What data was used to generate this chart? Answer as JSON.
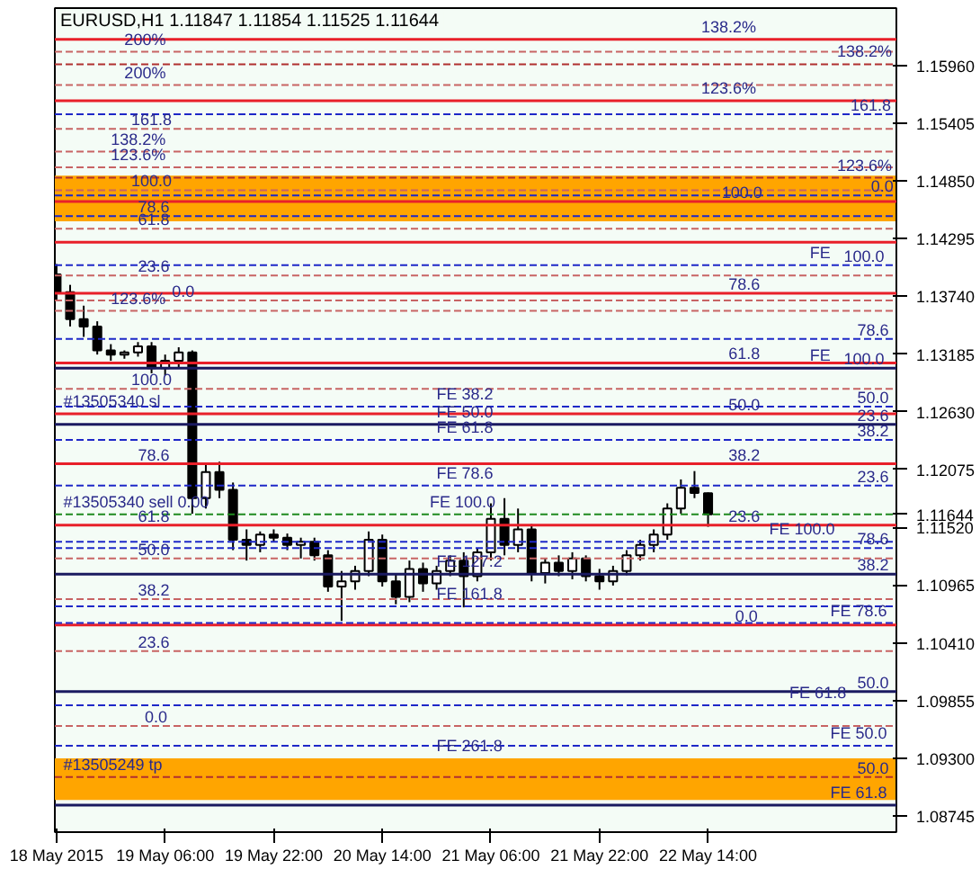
{
  "chart_data": {
    "type": "candlestick",
    "title": "EURUSD,H1  1.11847 1.11854 1.11525 1.11644",
    "x": [
      "2015-05-18T14:00",
      "2015-05-18T16:00",
      "2015-05-18T18:00",
      "2015-05-18T20:00",
      "2015-05-18T22:00",
      "2015-05-19T00:00",
      "2015-05-19T02:00",
      "2015-05-19T04:00",
      "2015-05-19T06:00",
      "2015-05-19T08:00",
      "2015-05-19T10:00",
      "2015-05-19T12:00",
      "2015-05-19T14:00",
      "2015-05-19T16:00",
      "2015-05-19T18:00",
      "2015-05-19T20:00",
      "2015-05-19T22:00",
      "2015-05-20T00:00",
      "2015-05-20T02:00",
      "2015-05-20T04:00",
      "2015-05-20T06:00",
      "2015-05-20T08:00",
      "2015-05-20T10:00",
      "2015-05-20T12:00",
      "2015-05-20T14:00",
      "2015-05-20T16:00",
      "2015-05-20T18:00",
      "2015-05-20T20:00",
      "2015-05-20T22:00",
      "2015-05-21T00:00",
      "2015-05-21T02:00",
      "2015-05-21T04:00",
      "2015-05-21T06:00",
      "2015-05-21T08:00",
      "2015-05-21T10:00",
      "2015-05-21T12:00",
      "2015-05-21T14:00",
      "2015-05-21T16:00",
      "2015-05-21T18:00",
      "2015-05-21T20:00",
      "2015-05-21T22:00",
      "2015-05-22T00:00",
      "2015-05-22T02:00",
      "2015-05-22T04:00",
      "2015-05-22T06:00",
      "2015-05-22T08:00",
      "2015-05-22T10:00",
      "2015-05-22T12:00",
      "2015-05-22T14:00"
    ],
    "ohlc": [
      [
        1.1395,
        1.1405,
        1.137,
        1.1378
      ],
      [
        1.1378,
        1.1385,
        1.1345,
        1.1352
      ],
      [
        1.1352,
        1.1365,
        1.1335,
        1.1345
      ],
      [
        1.1345,
        1.135,
        1.1318,
        1.1322
      ],
      [
        1.1322,
        1.1328,
        1.1312,
        1.1318
      ],
      [
        1.1318,
        1.1322,
        1.1314,
        1.132
      ],
      [
        1.132,
        1.133,
        1.1316,
        1.1326
      ],
      [
        1.1326,
        1.133,
        1.13,
        1.1305
      ],
      [
        1.1305,
        1.1318,
        1.1298,
        1.1312
      ],
      [
        1.1312,
        1.1325,
        1.1305,
        1.132
      ],
      [
        1.132,
        1.1322,
        1.1165,
        1.118
      ],
      [
        1.118,
        1.1212,
        1.117,
        1.1205
      ],
      [
        1.1205,
        1.1215,
        1.118,
        1.1188
      ],
      [
        1.1188,
        1.1195,
        1.113,
        1.114
      ],
      [
        1.114,
        1.115,
        1.112,
        1.1135
      ],
      [
        1.1135,
        1.1148,
        1.1128,
        1.1145
      ],
      [
        1.1145,
        1.115,
        1.1138,
        1.1142
      ],
      [
        1.1142,
        1.1146,
        1.113,
        1.1135
      ],
      [
        1.1135,
        1.1142,
        1.1122,
        1.1138
      ],
      [
        1.1138,
        1.1142,
        1.112,
        1.1125
      ],
      [
        1.1125,
        1.113,
        1.109,
        1.1095
      ],
      [
        1.1095,
        1.111,
        1.1062,
        1.11
      ],
      [
        1.11,
        1.1115,
        1.1092,
        1.111
      ],
      [
        1.111,
        1.1148,
        1.1105,
        1.114
      ],
      [
        1.114,
        1.1145,
        1.1095,
        1.11
      ],
      [
        1.11,
        1.1108,
        1.1078,
        1.1085
      ],
      [
        1.1085,
        1.112,
        1.108,
        1.1112
      ],
      [
        1.1112,
        1.1118,
        1.109,
        1.1098
      ],
      [
        1.1098,
        1.1115,
        1.1092,
        1.111
      ],
      [
        1.111,
        1.1125,
        1.1105,
        1.112
      ],
      [
        1.112,
        1.1128,
        1.1075,
        1.1105
      ],
      [
        1.1105,
        1.1132,
        1.11,
        1.1128
      ],
      [
        1.1128,
        1.1175,
        1.112,
        1.116
      ],
      [
        1.116,
        1.118,
        1.1125,
        1.1135
      ],
      [
        1.1135,
        1.117,
        1.1128,
        1.115
      ],
      [
        1.115,
        1.1155,
        1.11,
        1.1108
      ],
      [
        1.1108,
        1.1122,
        1.1098,
        1.1118
      ],
      [
        1.1118,
        1.1125,
        1.1105,
        1.111
      ],
      [
        1.111,
        1.1128,
        1.1102,
        1.1122
      ],
      [
        1.1122,
        1.1125,
        1.11,
        1.1105
      ],
      [
        1.1105,
        1.1112,
        1.1092,
        1.11
      ],
      [
        1.11,
        1.1115,
        1.1096,
        1.111
      ],
      [
        1.111,
        1.113,
        1.1106,
        1.1125
      ],
      [
        1.1125,
        1.114,
        1.112,
        1.1135
      ],
      [
        1.1135,
        1.115,
        1.1128,
        1.1145
      ],
      [
        1.1145,
        1.1175,
        1.114,
        1.117
      ],
      [
        1.117,
        1.1198,
        1.1165,
        1.119
      ],
      [
        1.119,
        1.1206,
        1.118,
        1.1185
      ],
      [
        1.11847,
        1.11854,
        1.11525,
        1.11644
      ]
    ],
    "xlim": [
      "2015-05-18T13:45",
      "2015-05-23T17:45"
    ],
    "xticks": [
      {
        "value": "2015-05-18T14:00",
        "label": "18 May 2015"
      },
      {
        "value": "2015-05-19T06:00",
        "label": "19 May 06:00"
      },
      {
        "value": "2015-05-19T22:00",
        "label": "19 May 22:00"
      },
      {
        "value": "2015-05-20T14:00",
        "label": "20 May 14:00"
      },
      {
        "value": "2015-05-21T06:00",
        "label": "21 May 06:00"
      },
      {
        "value": "2015-05-21T22:00",
        "label": "21 May 22:00"
      },
      {
        "value": "2015-05-22T14:00",
        "label": "22 May 14:00"
      }
    ],
    "ylim": [
      1.0859,
      1.1651
    ],
    "yticks": [
      {
        "value": 1.1596,
        "label": "1.15960"
      },
      {
        "value": 1.15405,
        "label": "1.15405"
      },
      {
        "value": 1.1485,
        "label": "1.14850"
      },
      {
        "value": 1.14295,
        "label": "1.14295"
      },
      {
        "value": 1.1374,
        "label": "1.13740"
      },
      {
        "value": 1.13185,
        "label": "1.13185"
      },
      {
        "value": 1.1263,
        "label": "1.12630"
      },
      {
        "value": 1.12075,
        "label": "1.12075"
      },
      {
        "value": 1.1152,
        "label": "1.11520"
      },
      {
        "value": 1.10965,
        "label": "1.10965"
      },
      {
        "value": 1.1041,
        "label": "1.10410"
      },
      {
        "value": 1.09855,
        "label": "1.09855"
      },
      {
        "value": 1.093,
        "label": "1.09300"
      },
      {
        "value": 1.08745,
        "label": "1.08745"
      },
      {
        "value": 1.11644,
        "label": "1.11644"
      }
    ],
    "bands": [
      {
        "axis": "y",
        "from": 1.1446,
        "to": 1.149,
        "color": "#ffa500"
      },
      {
        "axis": "y",
        "from": 1.089,
        "to": 1.093,
        "color": "#ffa500"
      }
    ],
    "ref_lines": [
      {
        "axis": "y",
        "value": 1.1621,
        "color": "#e8202a",
        "line_style": "solid"
      },
      {
        "axis": "y",
        "value": 1.1562,
        "color": "#e8202a",
        "line_style": "solid"
      },
      {
        "axis": "y",
        "value": 1.1465,
        "color": "#e8202a",
        "line_style": "solid"
      },
      {
        "axis": "y",
        "value": 1.1426,
        "color": "#e8202a",
        "line_style": "solid"
      },
      {
        "axis": "y",
        "value": 1.1377,
        "color": "#e8202a",
        "line_style": "solid"
      },
      {
        "axis": "y",
        "value": 1.131,
        "color": "#e8202a",
        "line_style": "solid"
      },
      {
        "axis": "y",
        "value": 1.1261,
        "color": "#e8202a",
        "line_style": "solid"
      },
      {
        "axis": "y",
        "value": 1.1213,
        "color": "#e8202a",
        "line_style": "solid"
      },
      {
        "axis": "y",
        "value": 1.1154,
        "color": "#e8202a",
        "line_style": "solid"
      },
      {
        "axis": "y",
        "value": 1.1058,
        "color": "#e8202a",
        "line_style": "solid"
      },
      {
        "axis": "y",
        "value": 1.1597,
        "color": "#b03030",
        "line_style": "dashed"
      },
      {
        "axis": "y",
        "value": 1.1488,
        "color": "#b03030",
        "line_style": "dashed"
      },
      {
        "axis": "y",
        "value": 1.0912,
        "color": "#b03030",
        "line_style": "dashed"
      },
      {
        "axis": "y",
        "value": 1.1609,
        "color": "#c86464",
        "line_style": "dashed"
      },
      {
        "axis": "y",
        "value": 1.1577,
        "color": "#c86464",
        "line_style": "dashed"
      },
      {
        "axis": "y",
        "value": 1.1535,
        "color": "#c86464",
        "line_style": "dashed"
      },
      {
        "axis": "y",
        "value": 1.1513,
        "color": "#c86464",
        "line_style": "dashed"
      },
      {
        "axis": "y",
        "value": 1.1498,
        "color": "#c86464",
        "line_style": "dashed"
      },
      {
        "axis": "y",
        "value": 1.1476,
        "color": "#c86464",
        "line_style": "dashed"
      },
      {
        "axis": "y",
        "value": 1.1439,
        "color": "#c86464",
        "line_style": "dashed"
      },
      {
        "axis": "y",
        "value": 1.1394,
        "color": "#c86464",
        "line_style": "dashed"
      },
      {
        "axis": "y",
        "value": 1.137,
        "color": "#c86464",
        "line_style": "dashed"
      },
      {
        "axis": "y",
        "value": 1.136,
        "color": "#c86464",
        "line_style": "dashed"
      },
      {
        "axis": "y",
        "value": 1.1285,
        "color": "#c86464",
        "line_style": "dashed"
      },
      {
        "axis": "y",
        "value": 1.1122,
        "color": "#c86464",
        "line_style": "dashed"
      },
      {
        "axis": "y",
        "value": 1.1083,
        "color": "#c86464",
        "line_style": "dashed"
      },
      {
        "axis": "y",
        "value": 1.1033,
        "color": "#c86464",
        "line_style": "dashed"
      },
      {
        "axis": "y",
        "value": 1.0961,
        "color": "#c86464",
        "line_style": "dashed"
      },
      {
        "axis": "y",
        "value": 1.1549,
        "color": "#1e28c8",
        "line_style": "dashed"
      },
      {
        "axis": "y",
        "value": 1.1471,
        "color": "#1e28c8",
        "line_style": "dashed"
      },
      {
        "axis": "y",
        "value": 1.1451,
        "color": "#1e28c8",
        "line_style": "dashed"
      },
      {
        "axis": "y",
        "value": 1.1404,
        "color": "#1e28c8",
        "line_style": "dashed"
      },
      {
        "axis": "y",
        "value": 1.1333,
        "color": "#1e28c8",
        "line_style": "dashed"
      },
      {
        "axis": "y",
        "value": 1.1305,
        "color": "#1a1a60",
        "line_style": "solid"
      },
      {
        "axis": "y",
        "value": 1.1268,
        "color": "#1e28c8",
        "line_style": "dashed"
      },
      {
        "axis": "y",
        "value": 1.1251,
        "color": "#1a1a60",
        "line_style": "solid"
      },
      {
        "axis": "y",
        "value": 1.1236,
        "color": "#1e28c8",
        "line_style": "dashed"
      },
      {
        "axis": "y",
        "value": 1.1192,
        "color": "#1e28c8",
        "line_style": "dashed"
      },
      {
        "axis": "y",
        "value": 1.11644,
        "color": "#1f8a1f",
        "line_style": "dashed"
      },
      {
        "axis": "y",
        "value": 1.1138,
        "color": "#1e28c8",
        "line_style": "dashed"
      },
      {
        "axis": "y",
        "value": 1.1132,
        "color": "#1e28c8",
        "line_style": "dashed"
      },
      {
        "axis": "y",
        "value": 1.1107,
        "color": "#1a1a60",
        "line_style": "solid"
      },
      {
        "axis": "y",
        "value": 1.1076,
        "color": "#1e28c8",
        "line_style": "dashed"
      },
      {
        "axis": "y",
        "value": 1.106,
        "color": "#1e28c8",
        "line_style": "dashed"
      },
      {
        "axis": "y",
        "value": 1.0994,
        "color": "#1a1a60",
        "line_style": "solid"
      },
      {
        "axis": "y",
        "value": 1.0981,
        "color": "#1e28c8",
        "line_style": "dashed"
      },
      {
        "axis": "y",
        "value": 1.0942,
        "color": "#1e28c8",
        "line_style": "dashed"
      },
      {
        "axis": "y",
        "value": 1.0885,
        "color": "#1a1a60",
        "line_style": "solid"
      }
    ],
    "annotations": [
      {
        "text": "138.2%",
        "x": "2015-05-22T13:00",
        "y": 1.1621
      },
      {
        "text": "123.6%",
        "x": "2015-05-22T13:00",
        "y": 1.1562
      },
      {
        "text": "100.0",
        "x": "2015-05-22T16:00",
        "y": 1.1465
      },
      {
        "text": "78.6",
        "x": "2015-05-22T17:00",
        "y": 1.1377
      },
      {
        "text": "61.8",
        "x": "2015-05-22T17:00",
        "y": 1.131
      },
      {
        "text": "50.0",
        "x": "2015-05-22T17:00",
        "y": 1.1261
      },
      {
        "text": "38.2",
        "x": "2015-05-22T17:00",
        "y": 1.1213
      },
      {
        "text": "23.6",
        "x": "2015-05-22T17:00",
        "y": 1.1154
      },
      {
        "text": "0.0",
        "x": "2015-05-22T18:00",
        "y": 1.1058
      },
      {
        "text": "138.2%",
        "x": "2015-05-23T09:00",
        "y": 1.1597
      },
      {
        "text": "161.8",
        "x": "2015-05-23T11:00",
        "y": 1.1549
      },
      {
        "text": "123.6%",
        "x": "2015-05-23T09:00",
        "y": 1.1488
      },
      {
        "text": "0.0",
        "x": "2015-05-23T14:00",
        "y": 1.1471
      },
      {
        "text": "FE",
        "x": "2015-05-23T05:00",
        "y": 1.1404
      },
      {
        "text": "100.0",
        "x": "2015-05-23T10:00",
        "y": 1.1404
      },
      {
        "text": "78.6",
        "x": "2015-05-23T12:00",
        "y": 1.1333
      },
      {
        "text": "FE",
        "x": "2015-05-23T05:00",
        "y": 1.1305
      },
      {
        "text": "100.0",
        "x": "2015-05-23T10:00",
        "y": 1.1305
      },
      {
        "text": "50.0",
        "x": "2015-05-23T12:00",
        "y": 1.1268
      },
      {
        "text": "23.6",
        "x": "2015-05-23T12:00",
        "y": 1.1251
      },
      {
        "text": "38.2",
        "x": "2015-05-23T12:00",
        "y": 1.1236
      },
      {
        "text": "23.6",
        "x": "2015-05-23T12:00",
        "y": 1.1192
      },
      {
        "text": "FE 100.0",
        "x": "2015-05-22T23:00",
        "y": 1.1138
      },
      {
        "text": "78.6",
        "x": "2015-05-23T12:00",
        "y": 1.1132
      },
      {
        "text": "38.2",
        "x": "2015-05-23T12:00",
        "y": 1.1107
      },
      {
        "text": "FE 78.6",
        "x": "2015-05-23T08:00",
        "y": 1.106
      },
      {
        "text": "50.0",
        "x": "2015-05-23T12:00",
        "y": 1.0994
      },
      {
        "text": "FE 61.8",
        "x": "2015-05-23T02:00",
        "y": 1.0981
      },
      {
        "text": "FE 50.0",
        "x": "2015-05-23T08:00",
        "y": 1.0942
      },
      {
        "text": "50.0",
        "x": "2015-05-23T12:00",
        "y": 1.0912
      },
      {
        "text": "FE 61.8",
        "x": "2015-05-23T08:00",
        "y": 1.0885
      },
      {
        "text": "FE 38.2",
        "x": "2015-05-20T22:00",
        "y": 1.1268
      },
      {
        "text": "FE 50.0",
        "x": "2015-05-20T22:00",
        "y": 1.1251
      },
      {
        "text": "FE 61.8",
        "x": "2015-05-20T22:00",
        "y": 1.1236
      },
      {
        "text": "FE 78.6",
        "x": "2015-05-20T22:00",
        "y": 1.1192
      },
      {
        "text": "FE 100.0",
        "x": "2015-05-20T21:00",
        "y": 1.11644
      },
      {
        "text": "FE 127.2",
        "x": "2015-05-20T22:00",
        "y": 1.1107
      },
      {
        "text": "FE 161.8",
        "x": "2015-05-20T22:00",
        "y": 1.1076
      },
      {
        "text": "FE 261.8",
        "x": "2015-05-20T22:00",
        "y": 1.093
      },
      {
        "text": "200%",
        "x": "2015-05-19T00:00",
        "y": 1.1609
      },
      {
        "text": "200%",
        "x": "2015-05-19T00:00",
        "y": 1.1577
      },
      {
        "text": "161.8",
        "x": "2015-05-19T01:00",
        "y": 1.1535
      },
      {
        "text": "138.2%",
        "x": "2015-05-18T22:00",
        "y": 1.1513
      },
      {
        "text": "123.6%",
        "x": "2015-05-18T22:00",
        "y": 1.1498
      },
      {
        "text": "100.0",
        "x": "2015-05-19T01:00",
        "y": 1.1476
      },
      {
        "text": "78.6",
        "x": "2015-05-19T02:00",
        "y": 1.1451
      },
      {
        "text": "61.8",
        "x": "2015-05-19T02:00",
        "y": 1.1439
      },
      {
        "text": "23.6",
        "x": "2015-05-19T02:00",
        "y": 1.1394
      },
      {
        "text": "0.0",
        "x": "2015-05-19T07:00",
        "y": 1.137
      },
      {
        "text": "123.6%",
        "x": "2015-05-18T22:00",
        "y": 1.136
      },
      {
        "text": "100.0",
        "x": "2015-05-19T01:00",
        "y": 1.1285
      },
      {
        "text": "78.6",
        "x": "2015-05-19T02:00",
        "y": 1.1213
      },
      {
        "text": "61.8",
        "x": "2015-05-19T02:00",
        "y": 1.1154
      },
      {
        "text": "50.0",
        "x": "2015-05-19T02:00",
        "y": 1.1122
      },
      {
        "text": "38.2",
        "x": "2015-05-19T02:00",
        "y": 1.1083
      },
      {
        "text": "23.6",
        "x": "2015-05-19T02:00",
        "y": 1.1033
      },
      {
        "text": "0.0",
        "x": "2015-05-19T03:00",
        "y": 1.0961
      },
      {
        "text": "#13505340 sl",
        "x": "2015-05-18T15:00",
        "y": 1.1261
      },
      {
        "text": "#13505340 sell 0.00",
        "x": "2015-05-18T15:00",
        "y": 1.11644
      },
      {
        "text": "#13505249 tp",
        "x": "2015-05-18T15:00",
        "y": 1.0912
      }
    ],
    "grid": false
  }
}
